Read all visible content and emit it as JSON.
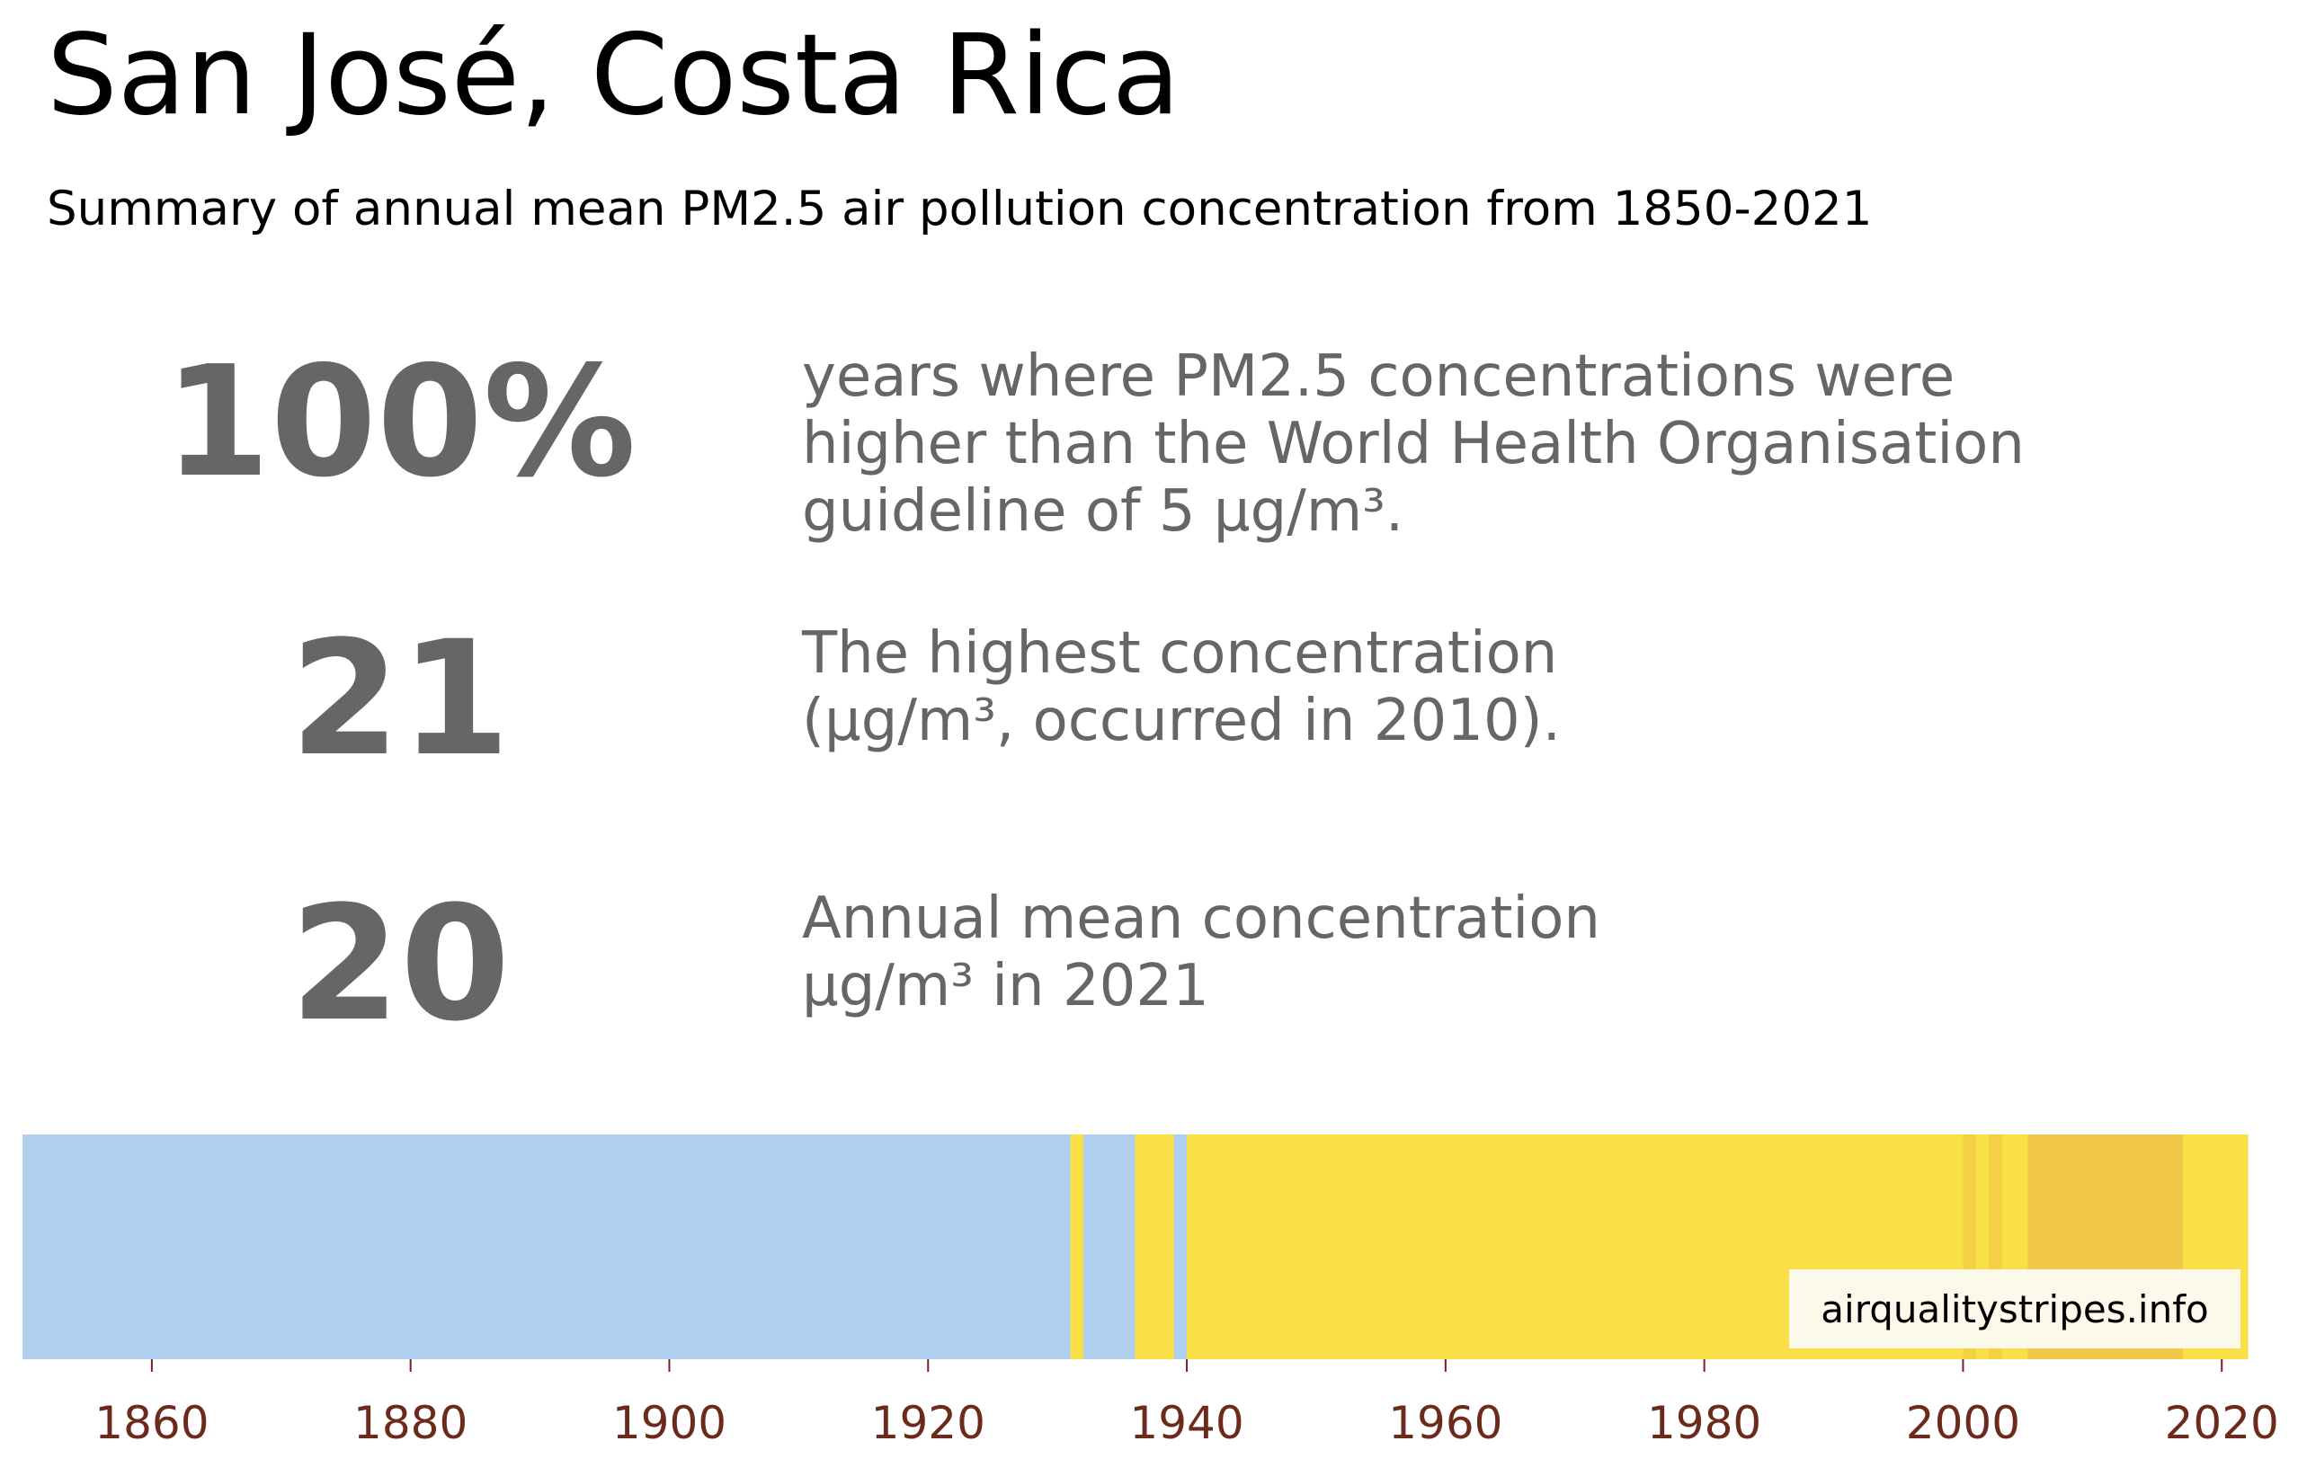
{
  "title": "San José, Costa Rica",
  "subtitle": "Summary of annual mean PM2.5 air pollution concentration from 1850-2021",
  "stats": [
    {
      "value": "100%",
      "lines": [
        "years where PM2.5 concentrations were",
        "higher than the World Health Organisation",
        "guideline of 5 µg/m³."
      ]
    },
    {
      "value": "21",
      "lines": [
        "The highest concentration",
        "(µg/m³, occurred in 2010)."
      ]
    },
    {
      "value": "20",
      "lines": [
        "Annual mean concentration",
        "µg/m³ in 2021"
      ]
    }
  ],
  "watermark": "airqualitystripes.info",
  "colors": {
    "stat_text": "#666666",
    "tick_label": "#6b2a1c",
    "light_blue": "#b0cfee",
    "yellow": "#f8e046",
    "dark_yellow": "#f4d045",
    "orange": "#f1c74a"
  },
  "chart_data": {
    "type": "heatmap",
    "title": "",
    "xlabel": "",
    "ylabel": "",
    "xlim": [
      1850,
      2022
    ],
    "x_ticks": [
      1860,
      1880,
      1900,
      1920,
      1940,
      1960,
      1980,
      2000,
      2020
    ],
    "segments": [
      {
        "start": 1850,
        "end": 1931,
        "color": "#b0cfee"
      },
      {
        "start": 1931,
        "end": 1932,
        "color": "#f8e046"
      },
      {
        "start": 1932,
        "end": 1936,
        "color": "#b0cfee"
      },
      {
        "start": 1936,
        "end": 1939,
        "color": "#f8e046"
      },
      {
        "start": 1939,
        "end": 1940,
        "color": "#b0cfee"
      },
      {
        "start": 1940,
        "end": 2000,
        "color": "#f8e046"
      },
      {
        "start": 2000,
        "end": 2001,
        "color": "#f4d045"
      },
      {
        "start": 2001,
        "end": 2002,
        "color": "#f8e046"
      },
      {
        "start": 2002,
        "end": 2003,
        "color": "#f4d045"
      },
      {
        "start": 2003,
        "end": 2005,
        "color": "#f8e046"
      },
      {
        "start": 2005,
        "end": 2017,
        "color": "#f1c74a"
      },
      {
        "start": 2017,
        "end": 2022,
        "color": "#f8e046"
      }
    ]
  }
}
